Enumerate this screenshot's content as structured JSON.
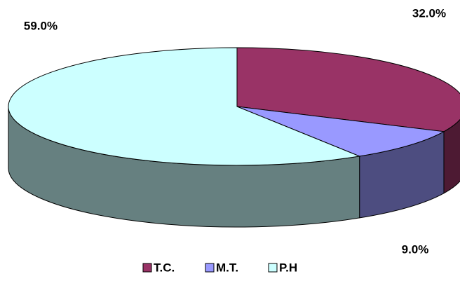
{
  "chart_data": {
    "type": "pie3d",
    "categories": [
      "T.C.",
      "M.T.",
      "P.H"
    ],
    "values": [
      32,
      9,
      59
    ],
    "value_labels": [
      "32.0%",
      "9.0%",
      "59.0%"
    ],
    "colors": [
      "#993366",
      "#9999ff",
      "#ccffff"
    ],
    "legend": "bottom"
  }
}
